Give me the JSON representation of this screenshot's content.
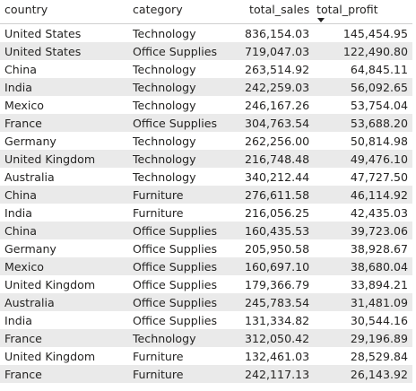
{
  "columns": {
    "country": "country",
    "category": "category",
    "total_sales": "total_sales",
    "total_profit": "total_profit"
  },
  "sort": {
    "column": "total_profit",
    "direction": "descending",
    "icon": "sort-descending-icon"
  },
  "rows": [
    {
      "country": "United States",
      "category": "Technology",
      "total_sales": "836,154.03",
      "total_profit": "145,454.95"
    },
    {
      "country": "United States",
      "category": "Office Supplies",
      "total_sales": "719,047.03",
      "total_profit": "122,490.80"
    },
    {
      "country": "China",
      "category": "Technology",
      "total_sales": "263,514.92",
      "total_profit": "64,845.11"
    },
    {
      "country": "India",
      "category": "Technology",
      "total_sales": "242,259.03",
      "total_profit": "56,092.65"
    },
    {
      "country": "Mexico",
      "category": "Technology",
      "total_sales": "246,167.26",
      "total_profit": "53,754.04"
    },
    {
      "country": "France",
      "category": "Office Supplies",
      "total_sales": "304,763.54",
      "total_profit": "53,688.20"
    },
    {
      "country": "Germany",
      "category": "Technology",
      "total_sales": "262,256.00",
      "total_profit": "50,814.98"
    },
    {
      "country": "United Kingdom",
      "category": "Technology",
      "total_sales": "216,748.48",
      "total_profit": "49,476.10"
    },
    {
      "country": "Australia",
      "category": "Technology",
      "total_sales": "340,212.44",
      "total_profit": "47,727.50"
    },
    {
      "country": "China",
      "category": "Furniture",
      "total_sales": "276,611.58",
      "total_profit": "46,114.92"
    },
    {
      "country": "India",
      "category": "Furniture",
      "total_sales": "216,056.25",
      "total_profit": "42,435.03"
    },
    {
      "country": "China",
      "category": "Office Supplies",
      "total_sales": "160,435.53",
      "total_profit": "39,723.06"
    },
    {
      "country": "Germany",
      "category": "Office Supplies",
      "total_sales": "205,950.58",
      "total_profit": "38,928.67"
    },
    {
      "country": "Mexico",
      "category": "Office Supplies",
      "total_sales": "160,697.10",
      "total_profit": "38,680.04"
    },
    {
      "country": "United Kingdom",
      "category": "Office Supplies",
      "total_sales": "179,366.79",
      "total_profit": "33,894.21"
    },
    {
      "country": "Australia",
      "category": "Office Supplies",
      "total_sales": "245,783.54",
      "total_profit": "31,481.09"
    },
    {
      "country": "India",
      "category": "Office Supplies",
      "total_sales": "131,334.82",
      "total_profit": "30,544.16"
    },
    {
      "country": "France",
      "category": "Technology",
      "total_sales": "312,050.42",
      "total_profit": "29,196.89"
    },
    {
      "country": "United Kingdom",
      "category": "Furniture",
      "total_sales": "132,461.03",
      "total_profit": "28,529.84"
    },
    {
      "country": "France",
      "category": "Furniture",
      "total_sales": "242,117.13",
      "total_profit": "26,143.92"
    }
  ]
}
